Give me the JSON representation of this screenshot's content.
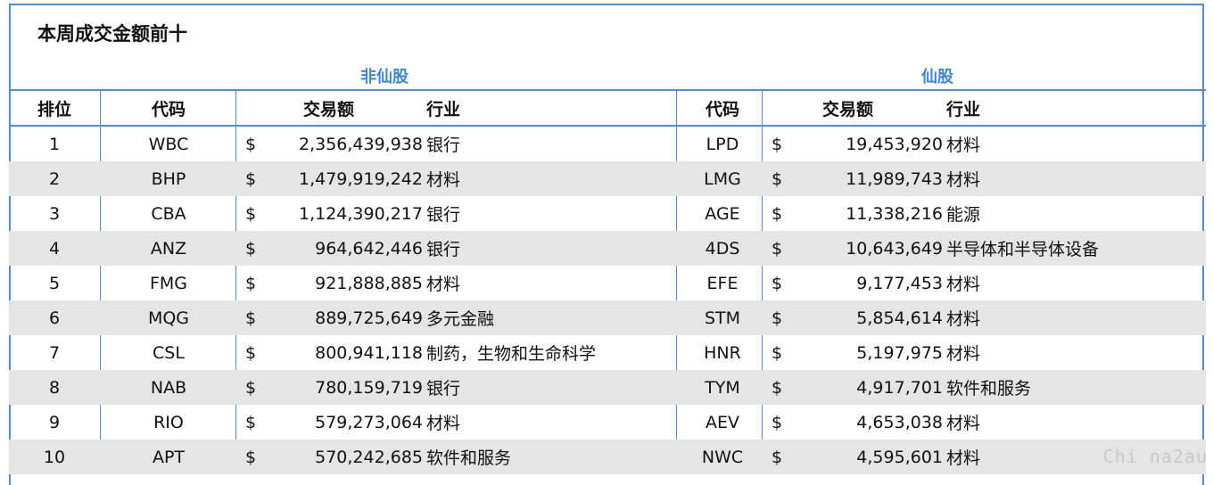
{
  "title": "本周成交金额前十",
  "groups": {
    "non_fairy": "非仙股",
    "fairy": "仙股"
  },
  "headers": {
    "rank": "排位",
    "code": "代码",
    "amount": "交易额",
    "industry": "行业",
    "code2": "代码",
    "amount2": "交易额",
    "industry2": "行业"
  },
  "rows": [
    {
      "rank": "1",
      "code": "WBC",
      "dollar": "$",
      "amount": "2,356,439,938",
      "industry": "银行",
      "code2": "LPD",
      "dollar2": "$",
      "amount2": "19,453,920",
      "industry2": "材料"
    },
    {
      "rank": "2",
      "code": "BHP",
      "dollar": "$",
      "amount": "1,479,919,242",
      "industry": "材料",
      "code2": "LMG",
      "dollar2": "$",
      "amount2": "11,989,743",
      "industry2": "材料"
    },
    {
      "rank": "3",
      "code": "CBA",
      "dollar": "$",
      "amount": "1,124,390,217",
      "industry": "银行",
      "code2": "AGE",
      "dollar2": "$",
      "amount2": "11,338,216",
      "industry2": "能源"
    },
    {
      "rank": "4",
      "code": "ANZ",
      "dollar": "$",
      "amount": "964,642,446",
      "industry": "银行",
      "code2": "4DS",
      "dollar2": "$",
      "amount2": "10,643,649",
      "industry2": "半导体和半导体设备"
    },
    {
      "rank": "5",
      "code": "FMG",
      "dollar": "$",
      "amount": "921,888,885",
      "industry": "材料",
      "code2": "EFE",
      "dollar2": "$",
      "amount2": "9,177,453",
      "industry2": "材料"
    },
    {
      "rank": "6",
      "code": "MQG",
      "dollar": "$",
      "amount": "889,725,649",
      "industry": "多元金融",
      "code2": "STM",
      "dollar2": "$",
      "amount2": "5,854,614",
      "industry2": "材料"
    },
    {
      "rank": "7",
      "code": "CSL",
      "dollar": "$",
      "amount": "800,941,118",
      "industry": "制药，生物和生命科学",
      "code2": "HNR",
      "dollar2": "$",
      "amount2": "5,197,975",
      "industry2": "材料"
    },
    {
      "rank": "8",
      "code": "NAB",
      "dollar": "$",
      "amount": "780,159,719",
      "industry": "银行",
      "code2": "TYM",
      "dollar2": "$",
      "amount2": "4,917,701",
      "industry2": "软件和服务"
    },
    {
      "rank": "9",
      "code": "RIO",
      "dollar": "$",
      "amount": "579,273,064",
      "industry": "材料",
      "code2": "AEV",
      "dollar2": "$",
      "amount2": "4,653,038",
      "industry2": "材料"
    },
    {
      "rank": "10",
      "code": "APT",
      "dollar": "$",
      "amount": "570,242,685",
      "industry": "软件和服务",
      "code2": "NWC",
      "dollar2": "$",
      "amount2": "4,595,601",
      "industry2": "材料"
    }
  ],
  "watermark": "Chi na2au"
}
